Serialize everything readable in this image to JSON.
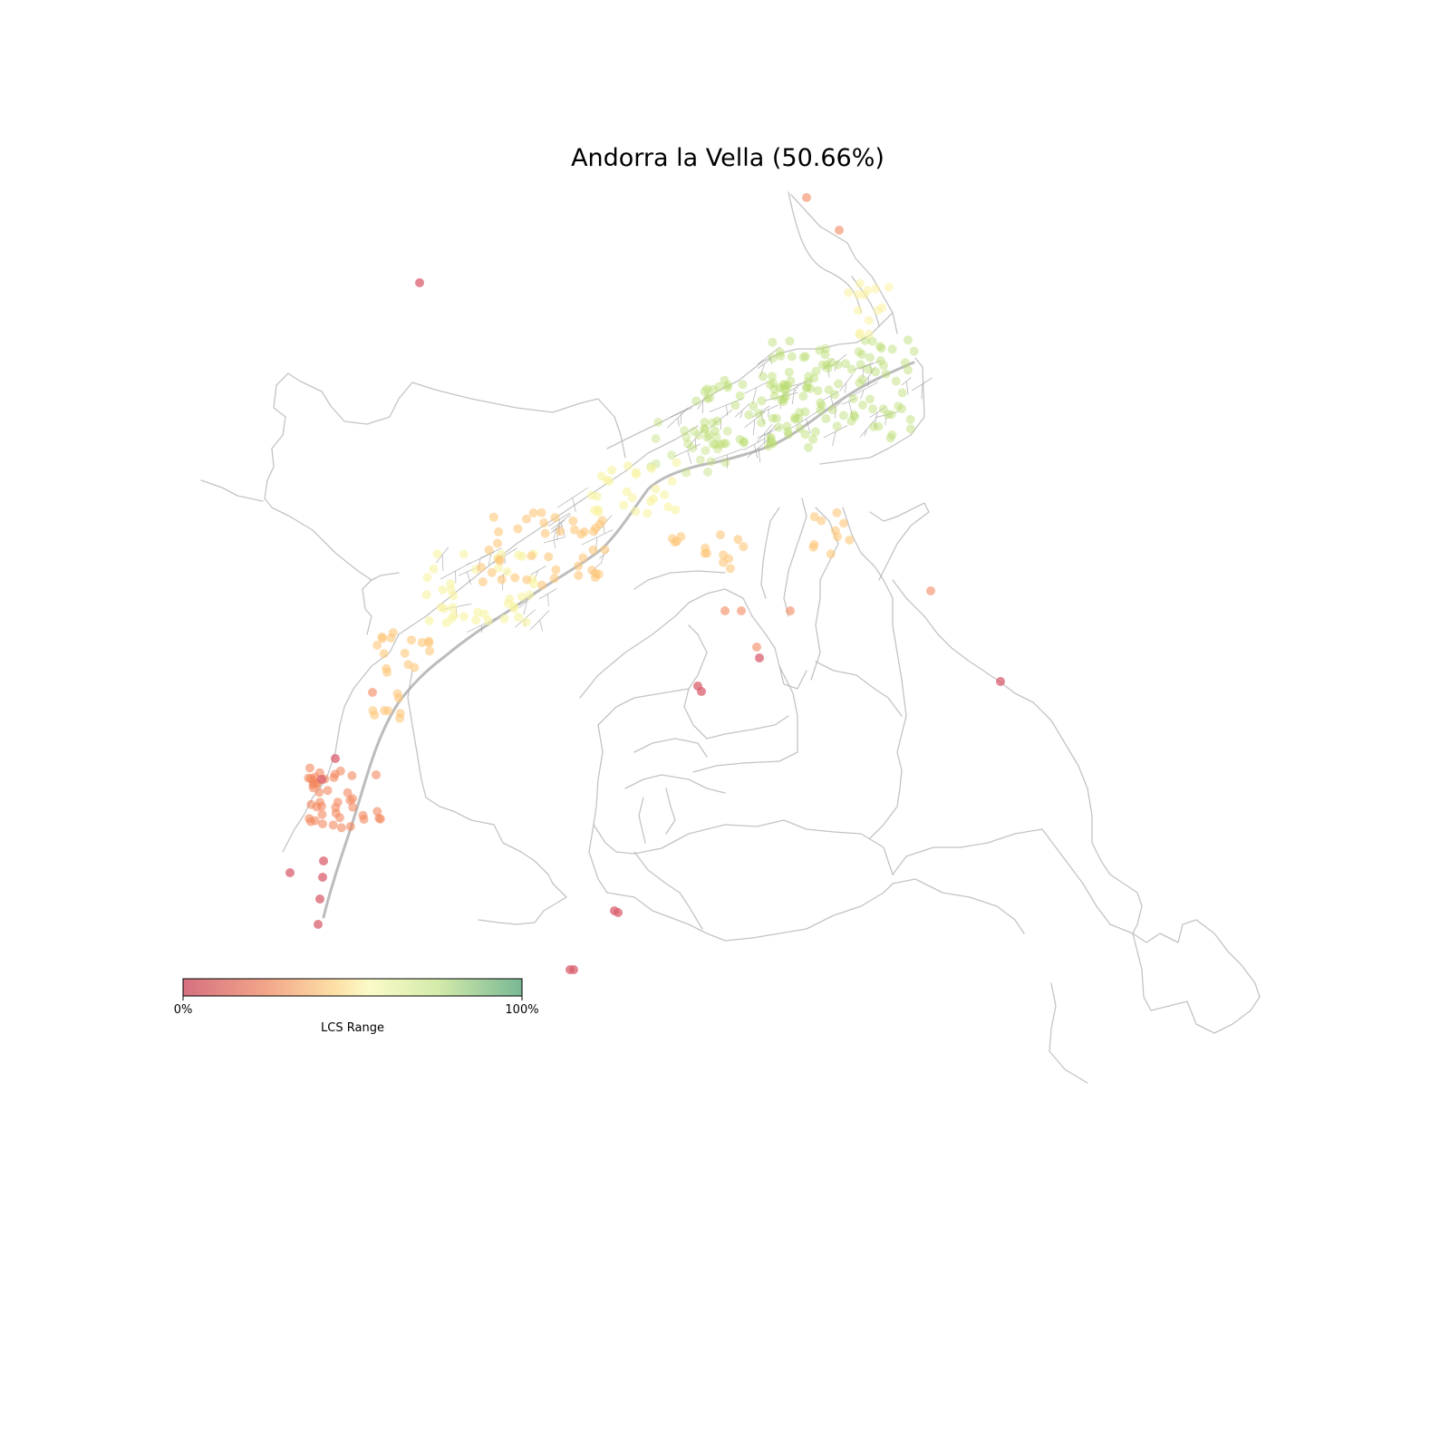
{
  "title": "Andorra la Vella (50.66%)",
  "legend": {
    "label": "LCS Range",
    "min_tick": "0%",
    "max_tick": "100%",
    "stops": [
      {
        "offset": 0.0,
        "color": "#d5707f"
      },
      {
        "offset": 0.25,
        "color": "#f3a78a"
      },
      {
        "offset": 0.45,
        "color": "#fde0a6"
      },
      {
        "offset": 0.55,
        "color": "#fafbc8"
      },
      {
        "offset": 0.75,
        "color": "#d4ebaa"
      },
      {
        "offset": 1.0,
        "color": "#78b894"
      }
    ]
  },
  "colors": {
    "road": "#b8b8b8",
    "low": "#d95f6e",
    "mid_low": "#f4895f",
    "mid": "#fdc679",
    "mid_high": "#f9f3a2",
    "high": "#b8dc6c"
  }
}
